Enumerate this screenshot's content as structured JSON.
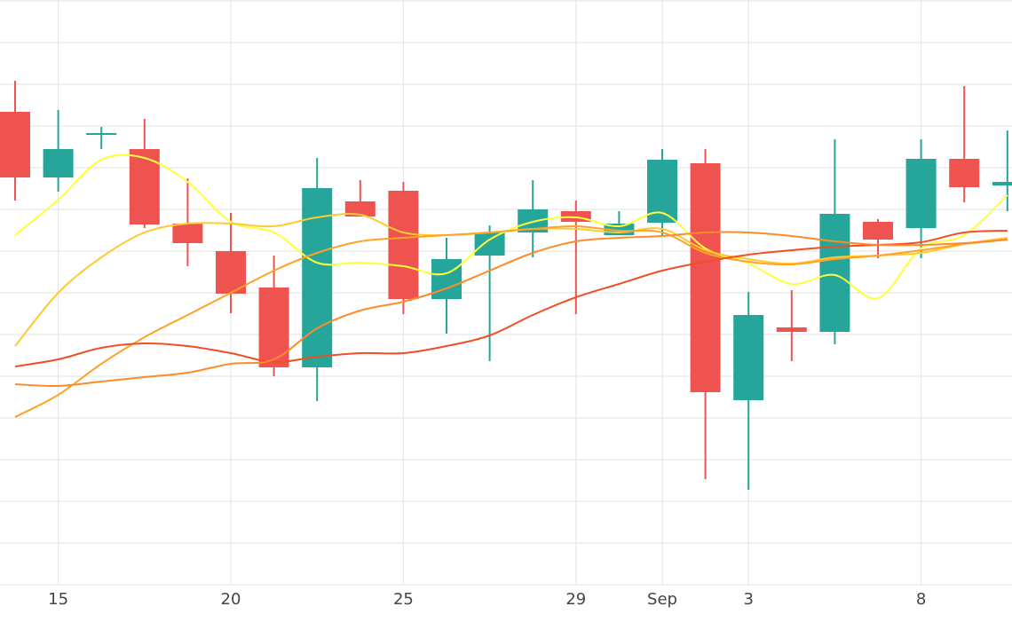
{
  "chart_data": {
    "type": "candlestick",
    "categories": [
      null,
      "15",
      null,
      null,
      null,
      "20",
      null,
      null,
      null,
      "25",
      null,
      null,
      null,
      "29",
      null,
      "Sep",
      null,
      "3",
      null,
      null,
      null,
      "8",
      null,
      null
    ],
    "open": [
      533,
      459,
      507,
      491,
      407,
      376,
      335,
      245,
      432,
      444,
      322,
      371,
      397,
      421,
      394,
      408,
      475,
      208,
      290,
      285,
      409,
      402,
      480,
      450
    ],
    "high": [
      568,
      535,
      516,
      525,
      458,
      419,
      371,
      481,
      456,
      454,
      391,
      405,
      456,
      433,
      421,
      491,
      491,
      330,
      332,
      502,
      412,
      502,
      562,
      512
    ],
    "low": [
      433,
      443,
      491,
      402,
      359,
      306,
      235,
      207,
      415,
      305,
      283,
      252,
      369,
      305,
      394,
      394,
      119,
      107,
      252,
      271,
      368,
      368,
      431,
      421
    ],
    "close": [
      459,
      491,
      509,
      406,
      385,
      328,
      245,
      447,
      415,
      322,
      367,
      397,
      423,
      409,
      407,
      479,
      217,
      304,
      285,
      418,
      389,
      480,
      448,
      454
    ],
    "up_color": "#26a69a",
    "down_color": "#ef5350",
    "series": [
      {
        "color": "#ffff3c",
        "values": [
          394,
          434,
          479,
          481,
          454,
          409,
          397,
          363,
          363,
          359,
          351,
          389,
          409,
          414,
          404,
          419,
          379,
          362,
          339,
          349,
          323,
          379,
          394,
          439
        ]
      },
      {
        "color": "#ffc930",
        "values": [
          269,
          329,
          369,
          397,
          407,
          407,
          404,
          414,
          417,
          397,
          394,
          397,
          401,
          401,
          397,
          401,
          377,
          367,
          362,
          369,
          371,
          374,
          384,
          391
        ]
      },
      {
        "color": "#ffa326",
        "values": [
          189,
          214,
          249,
          279,
          304,
          329,
          354,
          374,
          387,
          391,
          394,
          397,
          401,
          404,
          399,
          397,
          374,
          364,
          361,
          367,
          371,
          377,
          384,
          389
        ]
      },
      {
        "color": "#f04e23",
        "values": [
          246,
          254,
          267,
          272,
          269,
          261,
          251,
          257,
          261,
          261,
          269,
          281,
          304,
          324,
          339,
          354,
          364,
          372,
          377,
          381,
          383,
          386,
          397,
          399
        ]
      },
      {
        "color": "#ff8a2a",
        "values": [
          226,
          224,
          229,
          234,
          239,
          249,
          254,
          289,
          309,
          319,
          334,
          354,
          374,
          387,
          391,
          393,
          397,
          397,
          393,
          387,
          383,
          383,
          385,
          389
        ]
      }
    ],
    "ylim": [
      0,
      659
    ],
    "yticks": [
      0,
      47,
      94,
      141,
      188,
      235,
      282,
      329,
      376,
      423,
      470,
      517,
      564,
      611,
      658
    ],
    "grid": true
  }
}
